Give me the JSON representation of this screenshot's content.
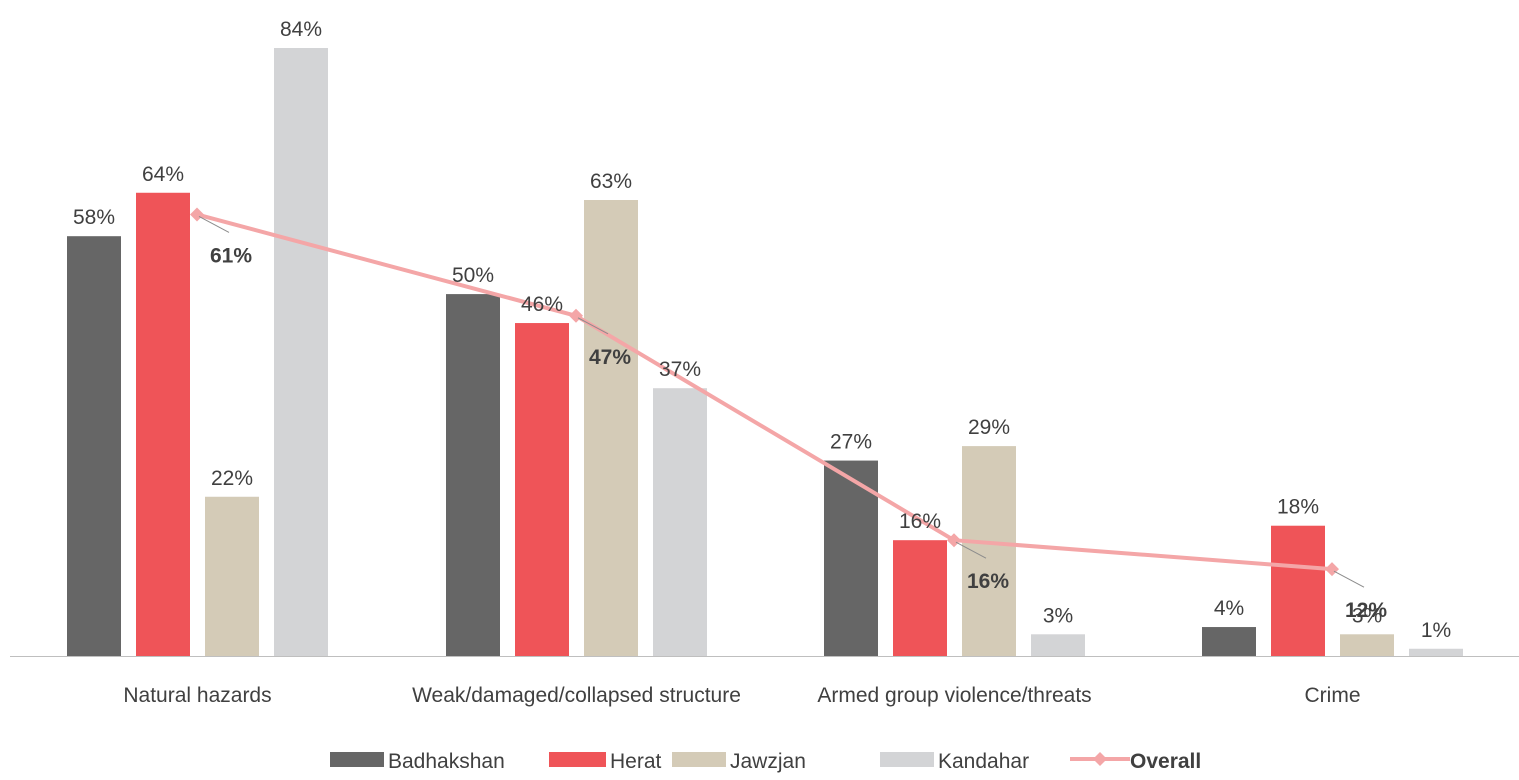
{
  "chart_data": {
    "type": "bar",
    "categories": [
      "Natural hazards",
      "Weak/damaged/collapsed structure",
      "Armed group violence/threats",
      "Crime"
    ],
    "series": [
      {
        "name": "Badhakshan",
        "values": [
          58,
          50,
          27,
          4
        ],
        "labels": [
          "58%",
          "50%",
          "27%",
          "4%"
        ],
        "color": "#666666"
      },
      {
        "name": "Herat",
        "values": [
          64,
          46,
          16,
          18
        ],
        "labels": [
          "64%",
          "46%",
          "16%",
          "18%"
        ],
        "color": "#ef5458"
      },
      {
        "name": "Jawzjan",
        "values": [
          22,
          63,
          29,
          3
        ],
        "labels": [
          "22%",
          "63%",
          "29%",
          "3%"
        ],
        "color": "#d4cbb7"
      },
      {
        "name": "Kandahar",
        "values": [
          84,
          37,
          3,
          1
        ],
        "labels": [
          "84%",
          "37%",
          "3%",
          "1%"
        ],
        "color": "#d3d4d6"
      }
    ],
    "overall": {
      "name": "Overall",
      "type": "line",
      "values": [
        61,
        47,
        16,
        12
      ],
      "labels": [
        "61%",
        "47%",
        "16%",
        "12%"
      ],
      "color": "#f4a6a7"
    },
    "ylim": [
      0,
      84
    ],
    "legend_position": "bottom",
    "grid": false
  }
}
